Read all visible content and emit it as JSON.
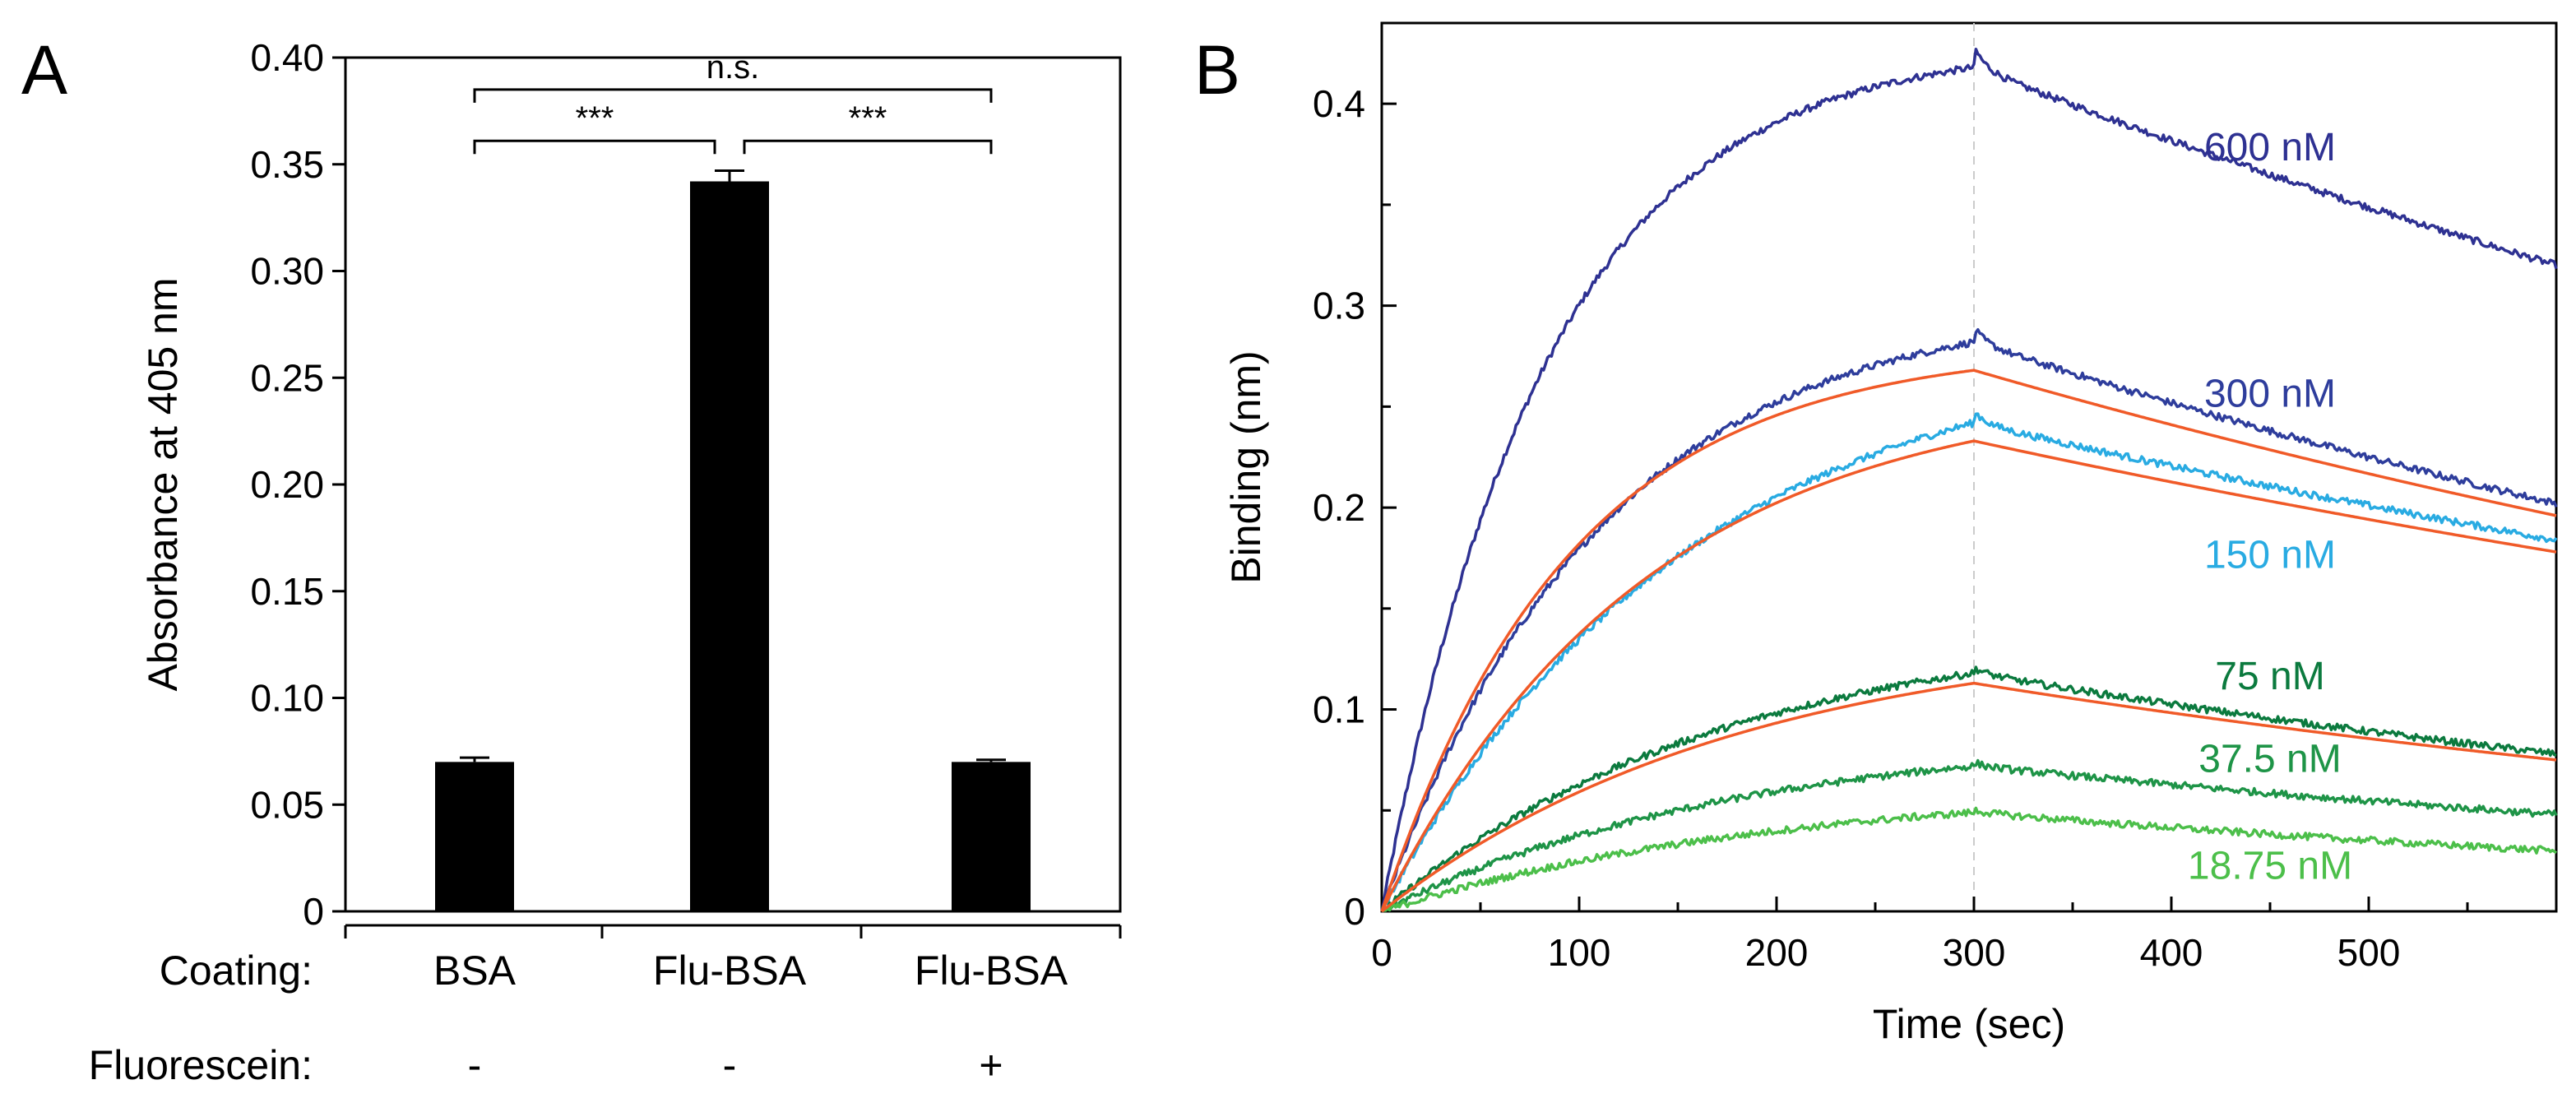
{
  "chart_data": [
    {
      "panel": "A",
      "type": "bar",
      "ylabel": "Absorbance at 405 nm",
      "ylim": [
        0,
        0.4
      ],
      "yticks": [
        0,
        0.05,
        0.1,
        0.15,
        0.2,
        0.25,
        0.3,
        0.35,
        0.4
      ],
      "ytick_labels": [
        "0",
        "0.05",
        "0.10",
        "0.15",
        "0.20",
        "0.25",
        "0.30",
        "0.35",
        "0.40"
      ],
      "row_labels": {
        "coating": "Coating:",
        "fluorescein": "Fluorescein:"
      },
      "categories": [
        "BSA",
        "Flu-BSA",
        "Flu-BSA"
      ],
      "fluorescein": [
        "-",
        "-",
        "+"
      ],
      "values": [
        0.07,
        0.342,
        0.07
      ],
      "errors": [
        0.002,
        0.005,
        0.001
      ],
      "bar_color": "#000000",
      "significance": [
        {
          "from": 0,
          "to": 1,
          "label": "***",
          "y": 0.361
        },
        {
          "from": 1,
          "to": 2,
          "label": "***",
          "y": 0.361
        },
        {
          "from": 0,
          "to": 2,
          "label": "n.s.",
          "y": 0.385
        }
      ]
    },
    {
      "panel": "B",
      "type": "line",
      "xlabel": "Time (sec)",
      "ylabel": "Binding (nm)",
      "xlim": [
        0,
        595
      ],
      "ylim": [
        0,
        0.44
      ],
      "xticks": [
        0,
        100,
        200,
        300,
        400,
        500
      ],
      "yticks": [
        0,
        0.1,
        0.2,
        0.3,
        0.4
      ],
      "ytick_labels": [
        "0",
        "0.1",
        "0.2",
        "0.3",
        "0.4"
      ],
      "dissociation_start": 300,
      "fit_color": "#f05a28",
      "series": [
        {
          "name": "600 nM",
          "color": "#2e3192",
          "peak": 0.418,
          "end": 0.32,
          "kobs": 0.012,
          "fit": false
        },
        {
          "name": "300 nM",
          "color": "#2e3d9c",
          "peak": 0.282,
          "end": 0.202,
          "kobs": 0.009,
          "fit": true
        },
        {
          "name": "150 nM",
          "color": "#29abe2",
          "peak": 0.242,
          "end": 0.184,
          "kobs": 0.0065,
          "fit": true
        },
        {
          "name": "75 nM",
          "color": "#0b7a3e",
          "peak": 0.118,
          "end": 0.078,
          "kobs": 0.0058,
          "fit": true
        },
        {
          "name": "37.5 nM",
          "color": "#1e9447",
          "peak": 0.072,
          "end": 0.048,
          "kobs": 0.0055,
          "fit": false
        },
        {
          "name": "18.75 nM",
          "color": "#4cbf4a",
          "peak": 0.049,
          "end": 0.03,
          "kobs": 0.005,
          "fit": false
        }
      ],
      "fits": [
        {
          "series": "300 nM",
          "peak": 0.268,
          "end": 0.196,
          "kobs": 0.0105
        },
        {
          "series": "150 nM",
          "peak": 0.233,
          "end": 0.178,
          "kobs": 0.0075
        },
        {
          "series": "75 nM",
          "peak": 0.113,
          "end": 0.075,
          "kobs": 0.0055
        }
      ]
    }
  ]
}
